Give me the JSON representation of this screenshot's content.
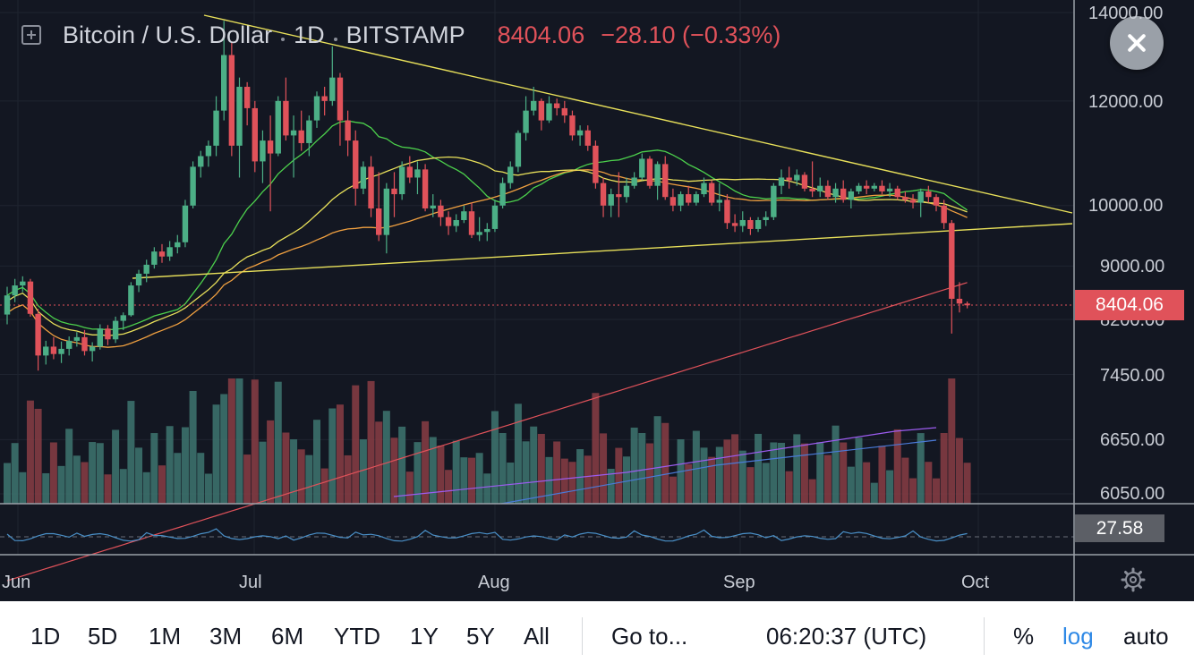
{
  "legend": {
    "symbol": "Bitcoin / U.S. Dollar",
    "interval": "1D",
    "exchange": "BITSTAMP",
    "price": "8404.06",
    "change": "−28.10 (−0.33%)"
  },
  "price_axis": {
    "ticks": [
      "14000.00",
      "12000.00",
      "10000.00",
      "9000.00",
      "8200.00",
      "7450.00",
      "6650.00",
      "6050.00"
    ],
    "last_price_label": "8404.06",
    "scale": "log"
  },
  "rsi_panel": {
    "value_label": "27.58"
  },
  "time_axis": {
    "labels": [
      "Jun",
      "Jul",
      "Aug",
      "Sep",
      "Oct"
    ]
  },
  "toolbar": {
    "ranges": [
      "1D",
      "5D",
      "1M",
      "3M",
      "6M",
      "YTD",
      "1Y",
      "5Y",
      "All"
    ],
    "goto_label": "Go to...",
    "clock": "06:20:37 (UTC)",
    "percent_label": "%",
    "log_label": "log",
    "auto_label": "auto"
  },
  "icons": {
    "close": "close-icon",
    "add": "plus-square-icon",
    "settings": "gear-icon"
  },
  "colors": {
    "background": "#131722",
    "up": "#4caf86",
    "down": "#e0525a",
    "trendline": "#e8e05a",
    "ma_green": "#4cd04c",
    "ma_orange": "#f0a040",
    "ma_yellow": "#e8e05a",
    "ma_red": "#e0525a",
    "vol_ma_purple": "#9c5cf0",
    "vol_ma_blue": "#4a7ad8",
    "rsi": "#4a90c8",
    "active": "#2f89e6"
  },
  "chart_data": {
    "type": "candlestick",
    "symbol": "Bitcoin / U.S. Dollar",
    "interval": "1D",
    "exchange": "BITSTAMP",
    "y_scale": "log",
    "ylim": [
      6050,
      14000
    ],
    "y_ticks": [
      14000,
      12000,
      10000,
      9000,
      8200,
      7450,
      6650,
      6050
    ],
    "last_price": 8404.06,
    "change": -28.1,
    "change_pct": -0.33,
    "rsi_last": 27.58,
    "x_labels": [
      "Jun",
      "Jul",
      "Aug",
      "Sep",
      "Oct"
    ],
    "candles_ohlc": [
      [
        8270,
        8680,
        8130,
        8550
      ],
      [
        8550,
        8800,
        8450,
        8700
      ],
      [
        8700,
        8840,
        8600,
        8760
      ],
      [
        8760,
        8800,
        8240,
        8280
      ],
      [
        8280,
        8350,
        7500,
        7700
      ],
      [
        7700,
        7900,
        7580,
        7820
      ],
      [
        7820,
        7950,
        7650,
        7720
      ],
      [
        7720,
        7890,
        7600,
        7790
      ],
      [
        7790,
        7960,
        7700,
        7900
      ],
      [
        7900,
        8020,
        7820,
        7950
      ],
      [
        7950,
        8050,
        7700,
        7760
      ],
      [
        7760,
        7880,
        7620,
        7820
      ],
      [
        7820,
        8130,
        7780,
        8070
      ],
      [
        8070,
        8120,
        7840,
        7920
      ],
      [
        7920,
        8240,
        7870,
        8180
      ],
      [
        8180,
        8300,
        8050,
        8260
      ],
      [
        8260,
        8750,
        8240,
        8700
      ],
      [
        8700,
        8940,
        8600,
        8880
      ],
      [
        8880,
        9100,
        8750,
        9020
      ],
      [
        9020,
        9300,
        8960,
        9230
      ],
      [
        9230,
        9350,
        9050,
        9150
      ],
      [
        9150,
        9400,
        9080,
        9300
      ],
      [
        9300,
        9500,
        9200,
        9380
      ],
      [
        9380,
        10100,
        9300,
        10000
      ],
      [
        10000,
        10800,
        9950,
        10700
      ],
      [
        10700,
        11000,
        10500,
        10900
      ],
      [
        10900,
        11200,
        10700,
        11100
      ],
      [
        11100,
        12100,
        10900,
        11800
      ],
      [
        11800,
        13800,
        11600,
        13000
      ],
      [
        13000,
        13300,
        10900,
        11100
      ],
      [
        11100,
        12500,
        10500,
        12300
      ],
      [
        12300,
        12400,
        11500,
        11850
      ],
      [
        11850,
        12000,
        10600,
        10800
      ],
      [
        10800,
        11400,
        10400,
        11200
      ],
      [
        11200,
        11700,
        9900,
        10950
      ],
      [
        10950,
        12100,
        10900,
        12000
      ],
      [
        12000,
        12500,
        11200,
        11300
      ],
      [
        11300,
        11700,
        10500,
        11400
      ],
      [
        11400,
        11800,
        11000,
        11150
      ],
      [
        11150,
        11700,
        10900,
        11600
      ],
      [
        11600,
        12200,
        11450,
        12100
      ],
      [
        12100,
        12300,
        11700,
        12000
      ],
      [
        12000,
        13200,
        11900,
        12500
      ],
      [
        12500,
        12600,
        11100,
        11600
      ],
      [
        11600,
        11800,
        10900,
        11200
      ],
      [
        11200,
        11400,
        10000,
        10300
      ],
      [
        10300,
        10800,
        10200,
        10700
      ],
      [
        10700,
        10900,
        9800,
        9950
      ],
      [
        9950,
        10600,
        9400,
        9500
      ],
      [
        9500,
        10400,
        9200,
        10300
      ],
      [
        10300,
        10600,
        9800,
        10200
      ],
      [
        10200,
        10800,
        10100,
        10700
      ],
      [
        10700,
        10900,
        10400,
        10500
      ],
      [
        10500,
        10800,
        10200,
        10650
      ],
      [
        10650,
        10750,
        9900,
        9950
      ],
      [
        9950,
        10200,
        9800,
        10000
      ],
      [
        10000,
        10100,
        9650,
        9800
      ],
      [
        9800,
        9900,
        9500,
        9650
      ],
      [
        9650,
        9850,
        9550,
        9750
      ],
      [
        9750,
        10000,
        9700,
        9900
      ],
      [
        9900,
        10050,
        9450,
        9500
      ],
      [
        9500,
        9800,
        9400,
        9550
      ],
      [
        9550,
        9700,
        9400,
        9600
      ],
      [
        9600,
        10100,
        9550,
        10000
      ],
      [
        10000,
        10500,
        9950,
        10400
      ],
      [
        10400,
        10800,
        10300,
        10700
      ],
      [
        10700,
        11400,
        10600,
        11350
      ],
      [
        11350,
        12100,
        11200,
        11800
      ],
      [
        11800,
        12300,
        11700,
        12000
      ],
      [
        12000,
        12050,
        11400,
        11600
      ],
      [
        11600,
        12100,
        11550,
        11950
      ],
      [
        11950,
        12050,
        11700,
        11850
      ],
      [
        11850,
        12000,
        11550,
        11700
      ],
      [
        11700,
        11800,
        11200,
        11300
      ],
      [
        11300,
        11500,
        11100,
        11400
      ],
      [
        11400,
        11500,
        11000,
        11100
      ],
      [
        11100,
        11200,
        10300,
        10400
      ],
      [
        10400,
        10500,
        9800,
        10000
      ],
      [
        10000,
        10300,
        9800,
        10200
      ],
      [
        10200,
        10600,
        9800,
        10150
      ],
      [
        10150,
        10500,
        10050,
        10350
      ],
      [
        10350,
        10600,
        10300,
        10500
      ],
      [
        10500,
        10950,
        10450,
        10850
      ],
      [
        10850,
        10900,
        10300,
        10350
      ],
      [
        10350,
        10800,
        10100,
        10750
      ],
      [
        10750,
        10900,
        10100,
        10150
      ],
      [
        10150,
        10300,
        9900,
        10000
      ],
      [
        10000,
        10250,
        9900,
        10200
      ],
      [
        10200,
        10350,
        10000,
        10050
      ],
      [
        10050,
        10250,
        10000,
        10200
      ],
      [
        10200,
        10500,
        10150,
        10400
      ],
      [
        10400,
        10450,
        10000,
        10050
      ],
      [
        10050,
        10400,
        9900,
        10100
      ],
      [
        10100,
        10200,
        9600,
        9700
      ],
      [
        9700,
        9850,
        9550,
        9650
      ],
      [
        9650,
        9900,
        9550,
        9750
      ],
      [
        9750,
        9800,
        9500,
        9600
      ],
      [
        9600,
        9800,
        9550,
        9750
      ],
      [
        9750,
        9900,
        9650,
        9800
      ],
      [
        9800,
        10400,
        9750,
        10350
      ],
      [
        10350,
        10650,
        10200,
        10500
      ],
      [
        10500,
        10700,
        10300,
        10450
      ],
      [
        10450,
        10650,
        10350,
        10550
      ],
      [
        10550,
        10600,
        10250,
        10300
      ],
      [
        10300,
        10800,
        10150,
        10250
      ],
      [
        10250,
        10500,
        10150,
        10350
      ],
      [
        10350,
        10450,
        10100,
        10150
      ],
      [
        10150,
        10400,
        10050,
        10300
      ],
      [
        10300,
        10450,
        10050,
        10100
      ],
      [
        10100,
        10300,
        9950,
        10250
      ],
      [
        10250,
        10400,
        10200,
        10350
      ],
      [
        10350,
        10450,
        10200,
        10300
      ],
      [
        10300,
        10400,
        10250,
        10350
      ],
      [
        10350,
        10450,
        10200,
        10250
      ],
      [
        10250,
        10400,
        10150,
        10300
      ],
      [
        10300,
        10350,
        10100,
        10150
      ],
      [
        10150,
        10250,
        10050,
        10100
      ],
      [
        10100,
        10200,
        9950,
        10050
      ],
      [
        10050,
        10300,
        9800,
        10250
      ],
      [
        10250,
        10350,
        10050,
        10150
      ],
      [
        10150,
        10200,
        9900,
        10000
      ],
      [
        10000,
        10100,
        9600,
        9700
      ],
      [
        9700,
        9750,
        8000,
        8500
      ],
      [
        8500,
        8750,
        8300,
        8430
      ],
      [
        8430,
        8460,
        8360,
        8404
      ]
    ]
  }
}
